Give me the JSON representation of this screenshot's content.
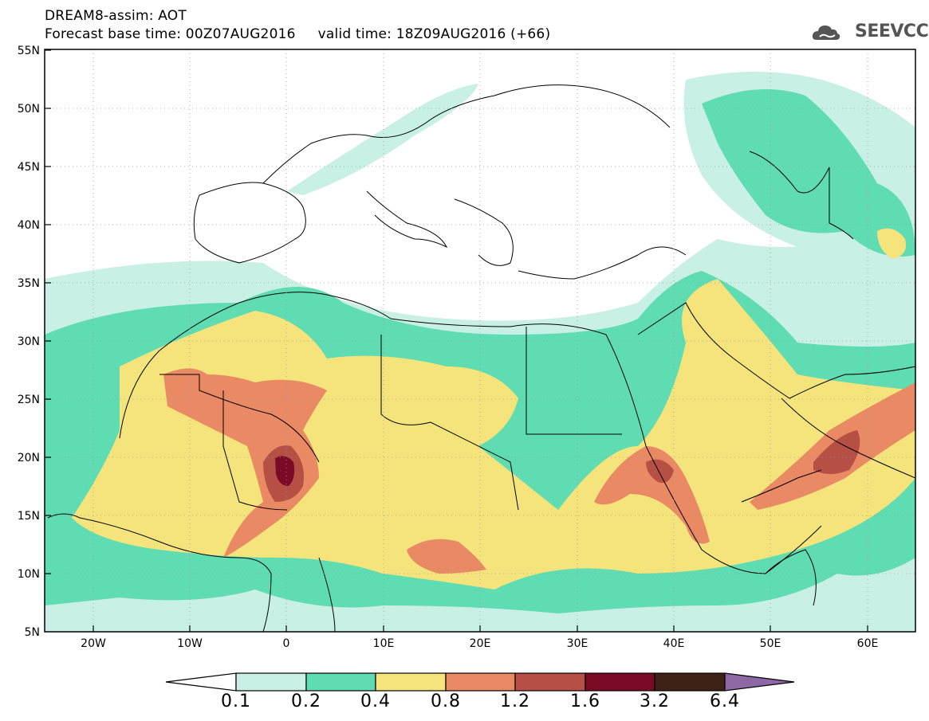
{
  "header": {
    "title": "DREAM8-assim: AOT",
    "base_time_label": "Forecast base time: 00Z07AUG2016",
    "valid_time_label": "valid time: 18Z09AUG2016 (+66)"
  },
  "logo": {
    "text": "SEEVCCC",
    "icon": "cloud-icon"
  },
  "map": {
    "lat_labels": [
      "55N",
      "50N",
      "45N",
      "40N",
      "35N",
      "30N",
      "25N",
      "20N",
      "15N",
      "10N",
      "5N"
    ],
    "lon_labels": [
      "20W",
      "10W",
      "0",
      "10E",
      "20E",
      "30E",
      "40E",
      "50E",
      "60E"
    ]
  },
  "colorbar": {
    "ticks": [
      "0.1",
      "0.2",
      "0.4",
      "0.8",
      "1.2",
      "1.6",
      "3.2",
      "6.4"
    ],
    "colors": [
      "#ffffff",
      "#c8f0e4",
      "#5fdcb2",
      "#f5e47c",
      "#e98a65",
      "#b65045",
      "#7a0a25",
      "#3e2216",
      "#8e67a5"
    ]
  }
}
